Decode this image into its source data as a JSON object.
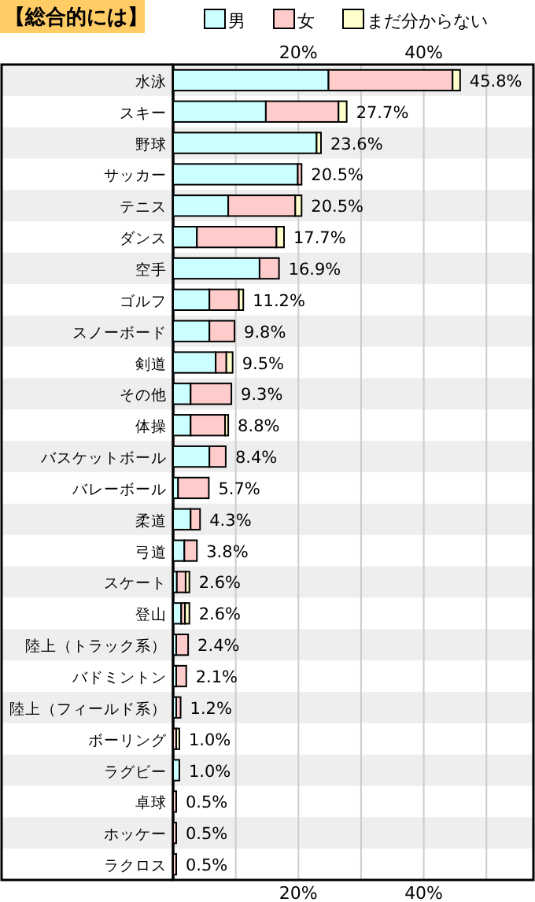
{
  "chart_data": {
    "type": "bar",
    "orientation": "horizontal",
    "stacked": true,
    "title": "【総合的には】",
    "categories": [
      "水泳",
      "スキー",
      "野球",
      "サッカー",
      "テニス",
      "ダンス",
      "空手",
      "ゴルフ",
      "スノーボード",
      "剣道",
      "その他",
      "体操",
      "バスケットボール",
      "バレーボール",
      "柔道",
      "弓道",
      "スケート",
      "登山",
      "陸上（トラック系）",
      "バドミントン",
      "陸上（フィールド系）",
      "ボーリング",
      "ラグビー",
      "卓球",
      "ホッケー",
      "ラクロス"
    ],
    "series": [
      {
        "name": "男",
        "color": "#ccffff",
        "values": [
          24.8,
          14.8,
          22.9,
          19.9,
          8.8,
          3.8,
          13.8,
          5.8,
          5.8,
          6.8,
          2.8,
          2.8,
          5.8,
          0.8,
          2.8,
          1.8,
          0.6,
          1.3,
          0.5,
          0.5,
          0.5,
          0,
          1.0,
          0,
          0,
          0
        ]
      },
      {
        "name": "女",
        "color": "#ffcccc",
        "values": [
          19.8,
          11.6,
          0,
          0.6,
          10.7,
          12.7,
          3.1,
          4.7,
          4.0,
          1.7,
          6.5,
          5.5,
          2.6,
          4.9,
          1.5,
          2.0,
          1.4,
          0.6,
          1.9,
          1.6,
          0.7,
          0.5,
          0,
          0.5,
          0.5,
          0.5
        ]
      },
      {
        "name": "まだ分からない",
        "color": "#ffffcc",
        "values": [
          1.2,
          1.3,
          0.7,
          0,
          1.0,
          1.2,
          0,
          0.7,
          0,
          1.0,
          0,
          0.5,
          0,
          0,
          0,
          0,
          0.6,
          0.7,
          0,
          0,
          0,
          0.5,
          0,
          0,
          0,
          0
        ]
      }
    ],
    "value_labels": [
      "45.8%",
      "27.7%",
      "23.6%",
      "20.5%",
      "20.5%",
      "17.7%",
      "16.9%",
      "11.2%",
      "9.8%",
      "9.5%",
      "9.3%",
      "8.8%",
      "8.4%",
      "5.7%",
      "4.3%",
      "3.8%",
      "2.6%",
      "2.6%",
      "2.4%",
      "2.1%",
      "1.2%",
      "1.0%",
      "1.0%",
      "0.5%",
      "0.5%",
      "0.5%"
    ],
    "xlim": [
      0,
      57.5
    ],
    "xticks": [
      {
        "value": 10,
        "label": null
      },
      {
        "value": 20,
        "label": "20%"
      },
      {
        "value": 30,
        "label": null
      },
      {
        "value": 40,
        "label": "40%"
      },
      {
        "value": 50,
        "label": null
      }
    ],
    "x2lim": [
      0,
      57.5
    ],
    "x2ticks": [
      {
        "value": 10,
        "label": null
      },
      {
        "value": 20,
        "label": "20%"
      },
      {
        "value": 30,
        "label": null
      },
      {
        "value": 40,
        "label": "40%"
      },
      {
        "value": 50,
        "label": null
      }
    ],
    "grid": "x",
    "legend": "top"
  }
}
